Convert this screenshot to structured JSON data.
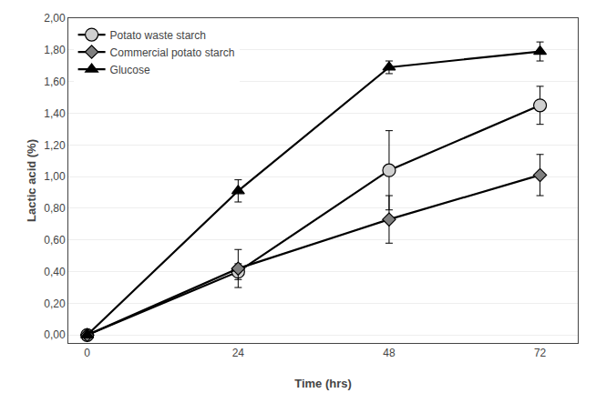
{
  "chart_data": {
    "type": "line",
    "x_label": "Time (hrs)",
    "y_label": "Lactic acid (%)",
    "x": [
      0,
      24,
      48,
      72
    ],
    "color": "#000000",
    "series": [
      {
        "name": "Potato waste starch",
        "color": "#d0d0d0",
        "marker": "circle",
        "values": [
          0.0,
          0.4,
          1.04,
          1.45
        ],
        "errors": [
          0.005,
          0.05,
          0.25,
          0.12
        ]
      },
      {
        "name": "Commercial potato starch",
        "color": "#808080",
        "marker": "diamond",
        "values": [
          0.0,
          0.42,
          0.73,
          1.01
        ],
        "errors": [
          0.005,
          0.12,
          0.15,
          0.13
        ]
      },
      {
        "name": "Glucose",
        "color": "#000000",
        "marker": "triangle-up",
        "values": [
          0.0,
          0.91,
          1.69,
          1.79
        ],
        "errors": [
          0.005,
          0.07,
          0.04,
          0.06
        ]
      }
    ],
    "xlim": [
      -3,
      78
    ],
    "xticks": [
      0,
      24,
      48,
      72
    ],
    "ylim": [
      -0.05,
      2.0
    ],
    "yticks": [
      {
        "value": 0.0,
        "label": "0,00"
      },
      {
        "value": 0.2,
        "label": "0,20"
      },
      {
        "value": 0.4,
        "label": "0,40"
      },
      {
        "value": 0.6,
        "label": "0,60"
      },
      {
        "value": 0.8,
        "label": "0,80"
      },
      {
        "value": 1.0,
        "label": "1,00"
      },
      {
        "value": 1.2,
        "label": "1,20"
      },
      {
        "value": 1.4,
        "label": "1,40"
      },
      {
        "value": 1.6,
        "label": "1,60"
      },
      {
        "value": 1.8,
        "label": "1,80"
      },
      {
        "value": 2.0,
        "label": "2,00"
      }
    ],
    "grid": "y",
    "legend": "upper left"
  }
}
